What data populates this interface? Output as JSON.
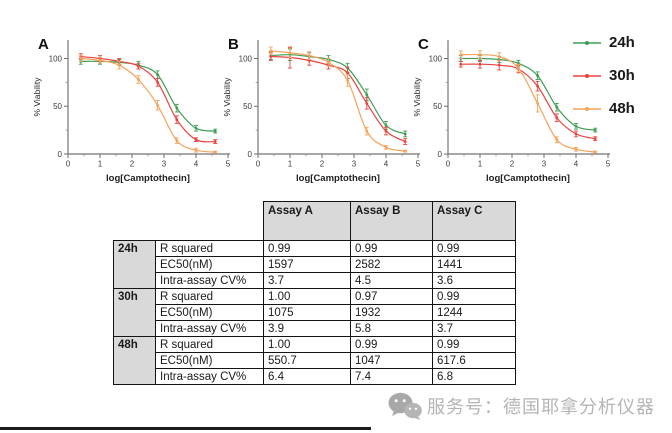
{
  "figure": {
    "panels": [
      {
        "letter": "A"
      },
      {
        "letter": "B"
      },
      {
        "letter": "C"
      }
    ],
    "legend": {
      "items": [
        {
          "label": "24h",
          "color": "#3f9e55"
        },
        {
          "label": "30h",
          "color": "#ea4340"
        },
        {
          "label": "48h",
          "color": "#f5a35b"
        }
      ]
    }
  },
  "chart_data": [
    {
      "type": "line",
      "panel": "A",
      "xlabel": "log[Camptothecin]",
      "ylabel": "% Viability",
      "xlim": [
        0,
        5
      ],
      "ylim": [
        0,
        120
      ],
      "xticks": [
        0,
        1,
        2,
        3,
        4,
        5
      ],
      "yticks": [
        0,
        50,
        100
      ],
      "x": [
        0.4,
        1.0,
        1.6,
        2.2,
        2.8,
        3.4,
        4.0,
        4.6
      ],
      "series": [
        {
          "name": "24h",
          "color": "#3f9e55",
          "values": [
            97,
            97,
            96,
            93,
            83,
            48,
            27,
            24
          ],
          "err": [
            3,
            3,
            3,
            4,
            4,
            4,
            3,
            2
          ]
        },
        {
          "name": "30h",
          "color": "#ea4340",
          "values": [
            102,
            100,
            97,
            92,
            75,
            36,
            15,
            13
          ],
          "err": [
            3,
            3,
            3,
            3,
            4,
            4,
            2,
            2
          ]
        },
        {
          "name": "48h",
          "color": "#f5a35b",
          "values": [
            100,
            98,
            93,
            78,
            51,
            14,
            4,
            2
          ],
          "err": [
            3,
            3,
            4,
            4,
            5,
            3,
            2,
            1
          ]
        }
      ]
    },
    {
      "type": "line",
      "panel": "B",
      "xlabel": "log[Camptothecin]",
      "ylabel": "% Viability",
      "xlim": [
        0,
        5
      ],
      "ylim": [
        0,
        120
      ],
      "xticks": [
        0,
        1,
        2,
        3,
        4,
        5
      ],
      "yticks": [
        0,
        50,
        100
      ],
      "x": [
        0.4,
        1.0,
        1.6,
        2.2,
        2.8,
        3.4,
        4.0,
        4.6
      ],
      "series": [
        {
          "name": "24h",
          "color": "#3f9e55",
          "values": [
            103,
            104,
            102,
            99,
            90,
            62,
            30,
            21
          ],
          "err": [
            4,
            6,
            4,
            4,
            5,
            6,
            4,
            3
          ]
        },
        {
          "name": "30h",
          "color": "#ea4340",
          "values": [
            102,
            101,
            98,
            93,
            85,
            53,
            24,
            13
          ],
          "err": [
            4,
            11,
            5,
            4,
            6,
            6,
            4,
            3
          ]
        },
        {
          "name": "48h",
          "color": "#f5a35b",
          "values": [
            108,
            106,
            103,
            96,
            77,
            24,
            7,
            3
          ],
          "err": [
            4,
            5,
            4,
            4,
            6,
            4,
            2,
            1
          ]
        }
      ]
    },
    {
      "type": "line",
      "panel": "C",
      "xlabel": "log[Camptothecin]",
      "ylabel": "% Viability",
      "xlim": [
        0,
        5
      ],
      "ylim": [
        0,
        120
      ],
      "xticks": [
        0,
        1,
        2,
        3,
        4,
        5
      ],
      "yticks": [
        0,
        50,
        100
      ],
      "x": [
        0.4,
        1.0,
        1.6,
        2.2,
        2.8,
        3.4,
        4.0,
        4.6
      ],
      "series": [
        {
          "name": "24h",
          "color": "#3f9e55",
          "values": [
            100,
            100,
            99,
            95,
            82,
            49,
            29,
            25
          ],
          "err": [
            3,
            3,
            3,
            3,
            4,
            4,
            3,
            2
          ]
        },
        {
          "name": "30h",
          "color": "#ea4340",
          "values": [
            94,
            94,
            93,
            89,
            71,
            38,
            21,
            16
          ],
          "err": [
            3,
            4,
            5,
            4,
            5,
            4,
            3,
            2
          ]
        },
        {
          "name": "48h",
          "color": "#f5a35b",
          "values": [
            104,
            104,
            102,
            90,
            53,
            15,
            5,
            2
          ],
          "err": [
            4,
            4,
            4,
            4,
            9,
            3,
            2,
            1
          ]
        }
      ]
    }
  ],
  "table": {
    "columns": [
      "Assay A",
      "Assay B",
      "Assay C"
    ],
    "groups": [
      {
        "time": "24h",
        "rows": [
          {
            "param": "R squared",
            "values": [
              "0.99",
              "0.99",
              "0.99"
            ]
          },
          {
            "param": "EC50(nM)",
            "values": [
              "1597",
              "2582",
              "1441"
            ]
          },
          {
            "param": "Intra-assay CV%",
            "values": [
              "3.7",
              "4.5",
              "3.6"
            ]
          }
        ]
      },
      {
        "time": "30h",
        "rows": [
          {
            "param": "R squared",
            "values": [
              "1.00",
              "0.97",
              "0.99"
            ]
          },
          {
            "param": "EC50(nM)",
            "values": [
              "1075",
              "1932",
              "1244"
            ]
          },
          {
            "param": "Intra-assay CV%",
            "values": [
              "3.9",
              "5.8",
              "3.7"
            ]
          }
        ]
      },
      {
        "time": "48h",
        "rows": [
          {
            "param": "R squared",
            "values": [
              "1.00",
              "0.99",
              "0.99"
            ]
          },
          {
            "param": "EC50(nM)",
            "values": [
              "550.7",
              "1047",
              "617.6"
            ]
          },
          {
            "param": "Intra-assay CV%",
            "values": [
              "6.4",
              "7.4",
              "6.8"
            ]
          }
        ]
      }
    ]
  },
  "watermark": {
    "icon": "wechat-icon",
    "text": "服务号：德国耶拿分析仪器",
    "color": "#b4b4b4"
  }
}
